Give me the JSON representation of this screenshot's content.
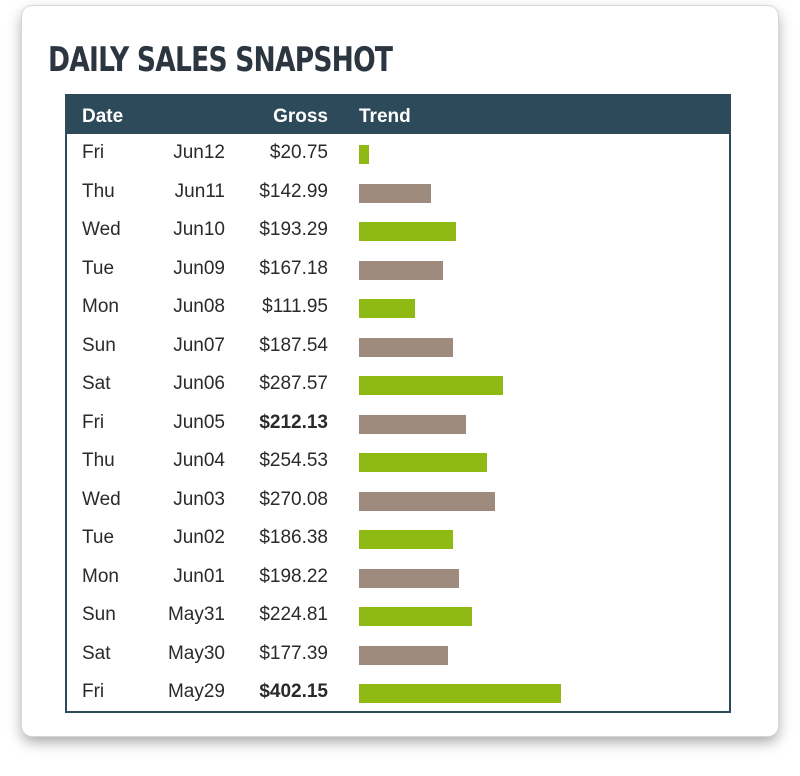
{
  "title": "DAILY SALES SNAPSHOT",
  "table": {
    "headers": {
      "date": "Date",
      "gross": "Gross",
      "trend": "Trend"
    },
    "colors": {
      "header_bg": "#2d4a5a",
      "bar_green": "#8fba14",
      "bar_taupe": "#9f8a7e"
    },
    "trend_max": 402.15,
    "rows": [
      {
        "day": "Fri",
        "date": "Jun12",
        "gross": "$20.75",
        "value": 20.75,
        "bold": false,
        "color": "green"
      },
      {
        "day": "Thu",
        "date": "Jun11",
        "gross": "$142.99",
        "value": 142.99,
        "bold": false,
        "color": "taupe"
      },
      {
        "day": "Wed",
        "date": "Jun10",
        "gross": "$193.29",
        "value": 193.29,
        "bold": false,
        "color": "green"
      },
      {
        "day": "Tue",
        "date": "Jun09",
        "gross": "$167.18",
        "value": 167.18,
        "bold": false,
        "color": "taupe"
      },
      {
        "day": "Mon",
        "date": "Jun08",
        "gross": "$111.95",
        "value": 111.95,
        "bold": false,
        "color": "green"
      },
      {
        "day": "Sun",
        "date": "Jun07",
        "gross": "$187.54",
        "value": 187.54,
        "bold": false,
        "color": "taupe"
      },
      {
        "day": "Sat",
        "date": "Jun06",
        "gross": "$287.57",
        "value": 287.57,
        "bold": false,
        "color": "green"
      },
      {
        "day": "Fri",
        "date": "Jun05",
        "gross": "$212.13",
        "value": 212.13,
        "bold": true,
        "color": "taupe"
      },
      {
        "day": "Thu",
        "date": "Jun04",
        "gross": "$254.53",
        "value": 254.53,
        "bold": false,
        "color": "green"
      },
      {
        "day": "Wed",
        "date": "Jun03",
        "gross": "$270.08",
        "value": 270.08,
        "bold": false,
        "color": "taupe"
      },
      {
        "day": "Tue",
        "date": "Jun02",
        "gross": "$186.38",
        "value": 186.38,
        "bold": false,
        "color": "green"
      },
      {
        "day": "Mon",
        "date": "Jun01",
        "gross": "$198.22",
        "value": 198.22,
        "bold": false,
        "color": "taupe"
      },
      {
        "day": "Sun",
        "date": "May31",
        "gross": "$224.81",
        "value": 224.81,
        "bold": false,
        "color": "green"
      },
      {
        "day": "Sat",
        "date": "May30",
        "gross": "$177.39",
        "value": 177.39,
        "bold": false,
        "color": "taupe"
      },
      {
        "day": "Fri",
        "date": "May29",
        "gross": "$402.15",
        "value": 402.15,
        "bold": true,
        "color": "green"
      }
    ]
  }
}
